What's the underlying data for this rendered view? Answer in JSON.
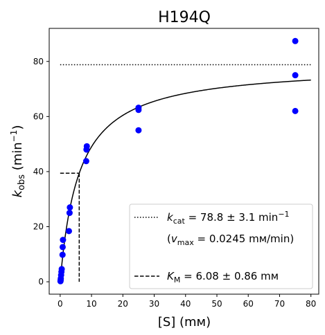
{
  "chart_data": {
    "type": "scatter",
    "title": "H194Q",
    "xlabel": "[S] (mм)",
    "ylabel_main": "k",
    "ylabel_sub": "obs",
    "ylabel_unit_pre": " (min",
    "ylabel_unit_sup": "−1",
    "ylabel_unit_post": ")",
    "xlim": [
      -3.5,
      82.5
    ],
    "ylim": [
      -4.5,
      92
    ],
    "xticks": [
      0,
      10,
      20,
      30,
      40,
      50,
      60,
      70,
      80
    ],
    "yticks": [
      0,
      20,
      40,
      60,
      80
    ],
    "points_color": "#0000ff",
    "points": [
      {
        "x": 0.1,
        "y": 0.2
      },
      {
        "x": 0.15,
        "y": 0.6
      },
      {
        "x": 0.2,
        "y": 1.2
      },
      {
        "x": 0.3,
        "y": 2.4
      },
      {
        "x": 0.4,
        "y": 3.6
      },
      {
        "x": 0.5,
        "y": 4.6
      },
      {
        "x": 0.75,
        "y": 9.8
      },
      {
        "x": 0.8,
        "y": 12.6
      },
      {
        "x": 0.9,
        "y": 15.2
      },
      {
        "x": 2.8,
        "y": 18.4
      },
      {
        "x": 3.0,
        "y": 25.0
      },
      {
        "x": 3.1,
        "y": 27.0
      },
      {
        "x": 8.3,
        "y": 43.8
      },
      {
        "x": 8.4,
        "y": 48.0
      },
      {
        "x": 8.5,
        "y": 49.2
      },
      {
        "x": 25.0,
        "y": 55.0
      },
      {
        "x": 25.0,
        "y": 62.4
      },
      {
        "x": 25.0,
        "y": 63.2
      },
      {
        "x": 75.0,
        "y": 62.0
      },
      {
        "x": 75.0,
        "y": 75.0
      },
      {
        "x": 75.0,
        "y": 87.4
      }
    ],
    "fit": {
      "type": "michaelis-menten",
      "kcat": 78.8,
      "km": 6.08,
      "x_range": [
        0,
        80
      ],
      "color": "#000000"
    },
    "kcat_line": {
      "y": 78.8,
      "x_range": [
        0,
        80
      ],
      "style": "dotted"
    },
    "km_lines": {
      "x": 6.08,
      "y": 39.4,
      "style": "dashed"
    },
    "legend": {
      "placement": "lower-right",
      "kcat": {
        "symbol": "k",
        "sub": "cat",
        "text": " = 78.8 ± 3.1 min",
        "sup": "−1"
      },
      "vmax": {
        "open": "(",
        "symbol": "v",
        "sub": "max",
        "text": " = 0.0245 mм/min)"
      },
      "km": {
        "symbol": "K",
        "sub": "M",
        "text": " = 6.08 ± 0.86 mм"
      }
    }
  }
}
